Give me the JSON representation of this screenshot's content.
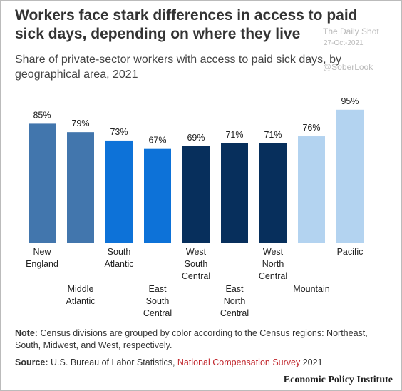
{
  "chart_data": {
    "type": "bar",
    "title": "Workers face stark differences in access to paid sick days, depending on where they live",
    "subtitle": "Share of private-sector workers with access to paid sick days, by geographical area, 2021",
    "categories": [
      "New England",
      "Middle Atlantic",
      "South Atlantic",
      "East South Central",
      "West South Central",
      "East North Central",
      "West North Central",
      "Mountain",
      "Pacific"
    ],
    "values": [
      85,
      79,
      73,
      67,
      69,
      71,
      71,
      76,
      95
    ],
    "value_labels": [
      "85%",
      "79%",
      "73%",
      "67%",
      "69%",
      "71%",
      "71%",
      "76%",
      "95%"
    ],
    "colors": [
      "#4276ad",
      "#4276ad",
      "#0d72d8",
      "#0d72d8",
      "#072f5c",
      "#072f5c",
      "#072f5c",
      "#b3d3f0",
      "#b3d3f0"
    ],
    "ylim": [
      0,
      100
    ],
    "note": {
      "label": "Note:",
      "text": "Census divisions are grouped by color according to the Census regions: Northeast, South, Midwest, and West, respectively."
    },
    "source": {
      "label": "Source:",
      "text": "U.S. Bureau of Labor Statistics,",
      "link": "National Compensation Survey",
      "year": "2021"
    },
    "credit": "Economic Policy Institute"
  },
  "watermark": {
    "name": "The Daily Shot",
    "date": "27-Oct-2021",
    "handle": "@SoberLook"
  }
}
